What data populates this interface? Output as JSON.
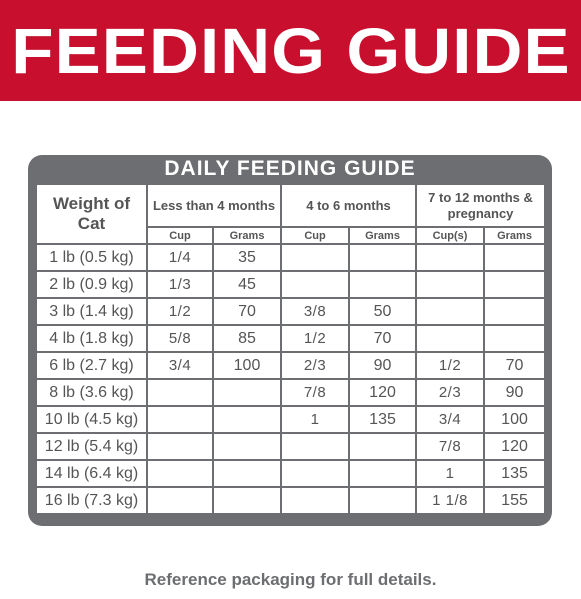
{
  "banner": {
    "title": "FEEDING GUIDE"
  },
  "guide": {
    "title": "DAILY FEEDING GUIDE",
    "weight_header": "Weight of Cat",
    "groups": [
      "Less than 4 months",
      "4 to 6 months",
      "7 to 12 months & pregnancy"
    ],
    "subheaders": [
      "Cup",
      "Grams",
      "Cup",
      "Grams",
      "Cup(s)",
      "Grams"
    ],
    "rows": [
      {
        "weight": "1 lb (0.5 kg)",
        "c1": "1/4",
        "g1": "35",
        "c2": "",
        "g2": "",
        "c3": "",
        "g3": ""
      },
      {
        "weight": "2 lb (0.9 kg)",
        "c1": "1/3",
        "g1": "45",
        "c2": "",
        "g2": "",
        "c3": "",
        "g3": ""
      },
      {
        "weight": "3 lb (1.4 kg)",
        "c1": "1/2",
        "g1": "70",
        "c2": "3/8",
        "g2": "50",
        "c3": "",
        "g3": ""
      },
      {
        "weight": "4 lb (1.8 kg)",
        "c1": "5/8",
        "g1": "85",
        "c2": "1/2",
        "g2": "70",
        "c3": "",
        "g3": ""
      },
      {
        "weight": "6 lb (2.7 kg)",
        "c1": "3/4",
        "g1": "100",
        "c2": "2/3",
        "g2": "90",
        "c3": "1/2",
        "g3": "70"
      },
      {
        "weight": "8 lb (3.6 kg)",
        "c1": "",
        "g1": "",
        "c2": "7/8",
        "g2": "120",
        "c3": "2/3",
        "g3": "90"
      },
      {
        "weight": "10 lb (4.5 kg)",
        "c1": "",
        "g1": "",
        "c2": "1",
        "g2": "135",
        "c3": "3/4",
        "g3": "100"
      },
      {
        "weight": "12 lb (5.4 kg)",
        "c1": "",
        "g1": "",
        "c2": "",
        "g2": "",
        "c3": "7/8",
        "g3": "120"
      },
      {
        "weight": "14 lb (6.4 kg)",
        "c1": "",
        "g1": "",
        "c2": "",
        "g2": "",
        "c3": "1",
        "g3": "135"
      },
      {
        "weight": "16 lb (7.3 kg)",
        "c1": "",
        "g1": "",
        "c2": "",
        "g2": "",
        "c3": "1 1/8",
        "g3": "155"
      }
    ]
  },
  "footer": {
    "text": "Reference packaging for full details."
  },
  "colors": {
    "banner": "#c8102e",
    "frame": "#6d6e71",
    "text": "#555555"
  }
}
